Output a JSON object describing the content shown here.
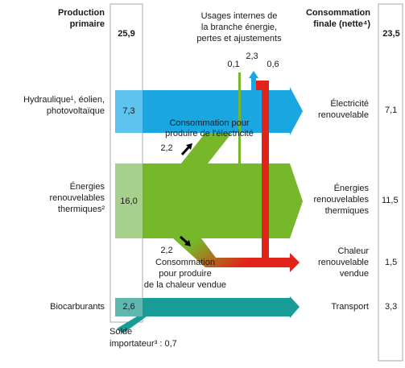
{
  "header": {
    "primary": [
      "Production",
      "primaire"
    ],
    "primary_total": "25,9",
    "final": [
      "Consommation",
      "finale (nette⁴)"
    ],
    "final_total": "23,5"
  },
  "internal": {
    "label": [
      "Usages internes de",
      "la branche énergie,",
      "pertes et ajustements"
    ],
    "values": [
      "0,1",
      "2,3",
      "0,6"
    ]
  },
  "sources": [
    {
      "label": [
        "Hydraulique¹, éolien,",
        "photovoltaïque"
      ],
      "value": "7,3"
    },
    {
      "label": [
        "Énergies",
        "renouvelables",
        "thermiques²"
      ],
      "value": "16,0"
    },
    {
      "label": [
        "Biocarburants"
      ],
      "value": "2,6"
    }
  ],
  "uses": [
    {
      "label": [
        "Électricité",
        "renouvelable"
      ],
      "value": "7,1"
    },
    {
      "label": [
        "Énergies",
        "renouvelables",
        "thermiques"
      ],
      "value": "11,5"
    },
    {
      "label": [
        "Chaleur",
        "renouvelable",
        "vendue"
      ],
      "value": "1,5"
    },
    {
      "label": [
        "Transport"
      ],
      "value": "3,3"
    }
  ],
  "transfers": [
    {
      "label": [
        "Consommation pour",
        "produire de l'électricité"
      ],
      "value": "2,2"
    },
    {
      "label": [
        "Consommation",
        "pour produire",
        "de la chaleur vendue"
      ],
      "value": "2,2"
    }
  ],
  "import": {
    "label": [
      "Solde",
      "importateur³ : 0,7"
    ]
  }
}
